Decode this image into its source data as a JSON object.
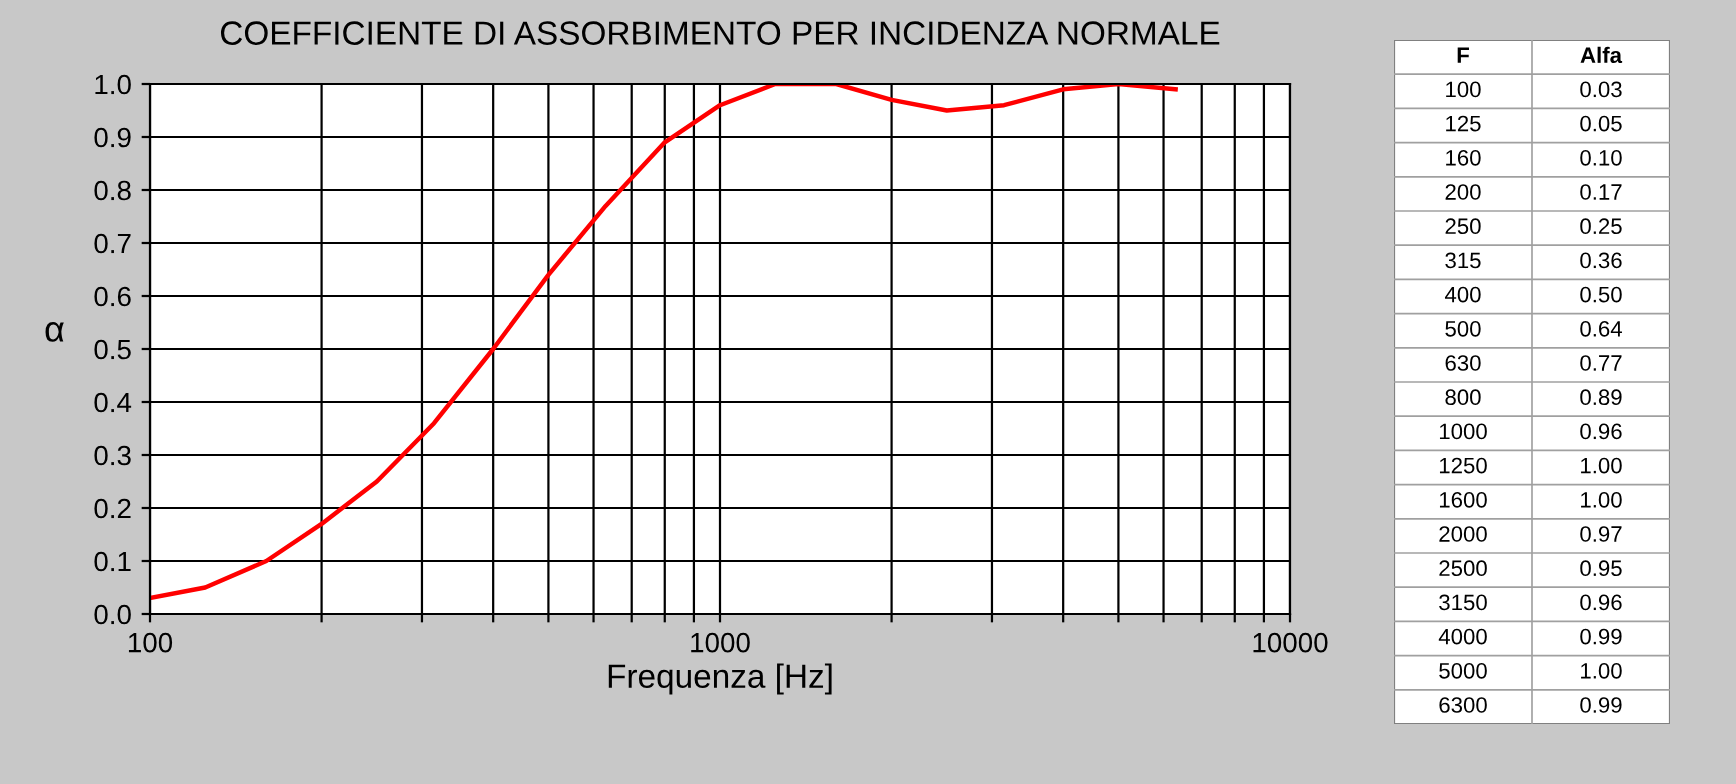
{
  "chart_data": [
    {
      "type": "line",
      "title": "COEFFICIENTE DI ASSORBIMENTO PER INCIDENZA NORMALE",
      "xlabel": "Frequenza [Hz]",
      "ylabel": "α",
      "x": [
        100,
        125,
        160,
        200,
        250,
        315,
        400,
        500,
        630,
        800,
        1000,
        1250,
        1600,
        2000,
        2500,
        3150,
        4000,
        5000,
        6300
      ],
      "series": [
        {
          "color": "#ff0000",
          "values": [
            0.03,
            0.05,
            0.1,
            0.17,
            0.25,
            0.36,
            0.5,
            0.64,
            0.77,
            0.89,
            0.96,
            1.0,
            1.0,
            0.97,
            0.95,
            0.96,
            0.99,
            1.0,
            0.99
          ]
        }
      ],
      "log": "x",
      "xlim": [
        100,
        10000
      ],
      "ylim": [
        0,
        1.0
      ],
      "xticks": [
        100,
        {
          "value": 200,
          "label": null
        },
        {
          "value": 300,
          "label": null
        },
        {
          "value": 400,
          "label": null
        },
        {
          "value": 500,
          "label": null
        },
        {
          "value": 600,
          "label": null
        },
        {
          "value": 700,
          "label": null
        },
        {
          "value": 800,
          "label": null
        },
        {
          "value": 900,
          "label": null
        },
        1000,
        {
          "value": 2000,
          "label": null
        },
        {
          "value": 3000,
          "label": null
        },
        {
          "value": 4000,
          "label": null
        },
        {
          "value": 5000,
          "label": null
        },
        {
          "value": 6000,
          "label": null
        },
        {
          "value": 7000,
          "label": null
        },
        {
          "value": 8000,
          "label": null
        },
        {
          "value": 9000,
          "label": null
        },
        10000
      ],
      "yticks": [
        {
          "value": 0,
          "label": "0.0"
        },
        {
          "value": 0.1,
          "label": "0.1"
        },
        {
          "value": 0.2,
          "label": "0.2"
        },
        {
          "value": 0.3,
          "label": "0.3"
        },
        {
          "value": 0.4,
          "label": "0.4"
        },
        {
          "value": 0.5,
          "label": "0.5"
        },
        {
          "value": 0.6,
          "label": "0.6"
        },
        {
          "value": 0.7,
          "label": "0.7"
        },
        {
          "value": 0.8,
          "label": "0.8"
        },
        {
          "value": 0.9,
          "label": "0.9"
        },
        {
          "value": 1.0,
          "label": "1.0"
        }
      ],
      "grid": true,
      "marker": "none",
      "line_style": "solid"
    },
    {
      "type": "other",
      "annotations": [
        "F",
        "Alfa",
        "100",
        "0.03",
        "125",
        "0.05",
        "160",
        "0.10",
        "200",
        "0.17",
        "250",
        "0.25",
        "315",
        "0.36",
        "400",
        "0.50",
        "500",
        "0.64",
        "630",
        "0.77",
        "800",
        "0.89",
        "1000",
        "0.96",
        "1250",
        "1.00",
        "1600",
        "1.00",
        "2000",
        "0.97",
        "2500",
        "0.95",
        "3150",
        "0.96",
        "4000",
        "0.99",
        "5000",
        "1.00",
        "6300",
        "0.99"
      ]
    }
  ]
}
